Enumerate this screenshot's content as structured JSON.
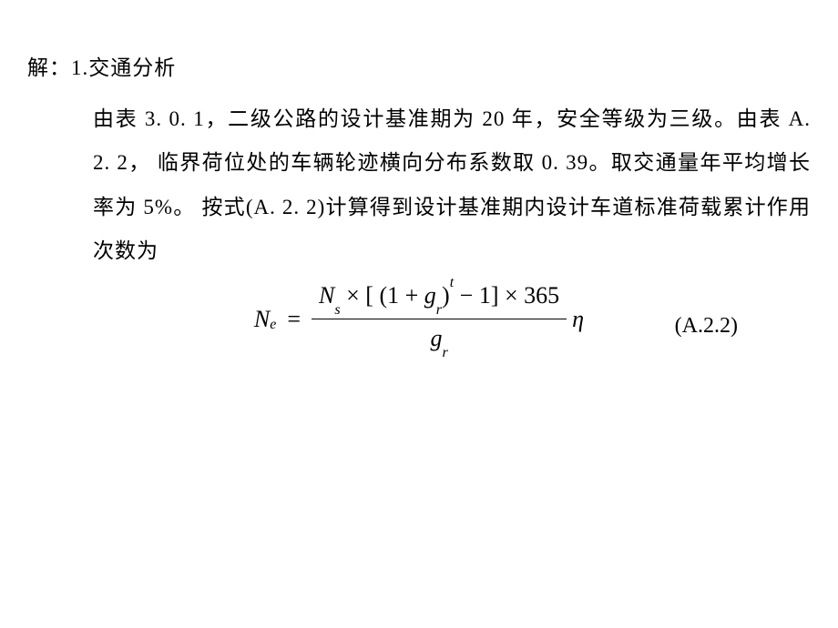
{
  "header": {
    "prefix": "解：",
    "section_number": "1.",
    "section_title": "交通分析"
  },
  "paragraph": {
    "line1": "由表 3. 0. 1，二级公路的设计基准期为 20 年，安全等级为三级。由表 A. 2. 2，",
    "line2": "临界荷位处的车辆轮迹横向分布系数取 0. 39。取交通量年平均增长率为 5%。",
    "line3": "按式(A. 2. 2)计算得到设计基准期内设计车道标准荷载累计作用次数为"
  },
  "formula": {
    "lhs_var": "N",
    "lhs_sub": "e",
    "eq": "=",
    "num_N": "N",
    "num_N_sub": "s",
    "times1": "×",
    "lbracket": "[",
    "lparen": "(",
    "one": "1",
    "plus": "+",
    "g": "g",
    "g_sub": "r",
    "rparen": ")",
    "exp_t": "t",
    "minus": "−",
    "one2": "1",
    "rbracket": "]",
    "times2": "×",
    "const365": "365",
    "den_g": "g",
    "den_g_sub": "r",
    "eta": "η",
    "number": "(A.2.2)"
  }
}
